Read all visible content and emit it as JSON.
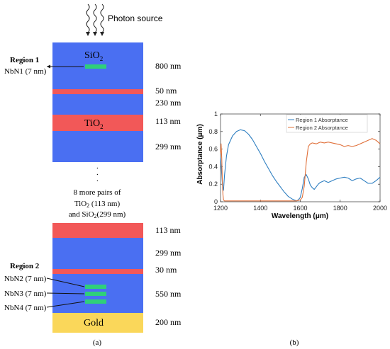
{
  "diagram": {
    "photon_label": "Photon source",
    "layers_top": [
      {
        "material": "SiO",
        "sub": "2",
        "thickness": "800 nm",
        "color": "#4a6ff2"
      },
      {
        "material": "",
        "sub": "",
        "thickness": "50 nm",
        "color": "#f25858"
      },
      {
        "material": "",
        "sub": "",
        "thickness": "230 nm",
        "color": "#4a6ff2"
      },
      {
        "material": "TiO",
        "sub": "2",
        "thickness": "113 nm",
        "color": "#f25858"
      },
      {
        "material": "",
        "sub": "",
        "thickness": "299 nm",
        "color": "#4a6ff2"
      }
    ],
    "region1": {
      "title": "Region 1",
      "wires": [
        "NbN1 (7 nm)"
      ]
    },
    "ellipsis_dots": [
      ".",
      ".",
      "."
    ],
    "middle_text": {
      "line1": "8 more pairs of",
      "line2_main": "TiO",
      "line2_sub": "2",
      "line2_rest": " (113 nm)",
      "line3_main": "and SiO",
      "line3_sub": "2",
      "line3_rest": "(299 nm)"
    },
    "layers_bottom": [
      {
        "material": "",
        "thickness": "113 nm",
        "color": "#f25858"
      },
      {
        "material": "",
        "thickness": "299 nm",
        "color": "#4a6ff2"
      },
      {
        "material": "",
        "thickness": "30 nm",
        "color": "#f25858"
      },
      {
        "material": "",
        "thickness": "550 nm",
        "color": "#4a6ff2"
      },
      {
        "material": "Gold",
        "thickness": "200 nm",
        "color": "#fad75a"
      }
    ],
    "region2": {
      "title": "Region 2",
      "wires": [
        "NbN2 (7 nm)",
        "NbN3 (7 nm)",
        "NbN4 (7 nm)"
      ]
    },
    "wire_color": "#2fd07a",
    "caption": "(a)"
  },
  "chart_data": {
    "type": "line",
    "xlabel": "Wavelength (μm)",
    "ylabel": "Absorptance (μm)",
    "xlim": [
      1200,
      2000
    ],
    "ylim": [
      0,
      1
    ],
    "xticks": [
      1200,
      1400,
      1600,
      1800,
      2000
    ],
    "yticks": [
      0,
      0.2,
      0.4,
      0.6,
      0.8,
      1
    ],
    "legend_position": "top-right",
    "grid": false,
    "series": [
      {
        "name": "Region 1 Absorptance",
        "color": "#2f7fc1",
        "x": [
          1200,
          1205,
          1210,
          1215,
          1220,
          1230,
          1240,
          1260,
          1280,
          1300,
          1320,
          1340,
          1360,
          1380,
          1400,
          1420,
          1440,
          1460,
          1480,
          1500,
          1520,
          1540,
          1560,
          1580,
          1590,
          1600,
          1610,
          1620,
          1630,
          1640,
          1650,
          1660,
          1670,
          1680,
          1690,
          1700,
          1720,
          1740,
          1760,
          1780,
          1800,
          1820,
          1840,
          1860,
          1880,
          1900,
          1920,
          1940,
          1960,
          1980,
          2000
        ],
        "y": [
          0.5,
          0.35,
          0.18,
          0.13,
          0.3,
          0.52,
          0.65,
          0.75,
          0.8,
          0.82,
          0.81,
          0.77,
          0.71,
          0.63,
          0.55,
          0.46,
          0.38,
          0.3,
          0.23,
          0.17,
          0.11,
          0.06,
          0.03,
          0.01,
          0.02,
          0.05,
          0.15,
          0.28,
          0.31,
          0.26,
          0.19,
          0.16,
          0.14,
          0.17,
          0.2,
          0.22,
          0.24,
          0.22,
          0.24,
          0.26,
          0.27,
          0.28,
          0.27,
          0.24,
          0.26,
          0.27,
          0.24,
          0.21,
          0.21,
          0.24,
          0.28
        ]
      },
      {
        "name": "Region 2 Absorptance",
        "color": "#e0703a",
        "x": [
          1200,
          1203,
          1206,
          1209,
          1212,
          1215,
          1220,
          1240,
          1300,
          1400,
          1500,
          1550,
          1580,
          1600,
          1610,
          1620,
          1630,
          1640,
          1650,
          1660,
          1680,
          1700,
          1720,
          1740,
          1760,
          1780,
          1800,
          1820,
          1840,
          1860,
          1880,
          1900,
          1920,
          1940,
          1960,
          1980,
          2000
        ],
        "y": [
          0.55,
          0.66,
          0.5,
          0.25,
          0.08,
          0.02,
          0.01,
          0.01,
          0.01,
          0.01,
          0.01,
          0.01,
          0.01,
          0.02,
          0.05,
          0.18,
          0.45,
          0.63,
          0.66,
          0.67,
          0.66,
          0.68,
          0.67,
          0.68,
          0.67,
          0.66,
          0.65,
          0.63,
          0.64,
          0.63,
          0.64,
          0.66,
          0.68,
          0.7,
          0.72,
          0.7,
          0.66
        ]
      }
    ],
    "caption": "(b)"
  }
}
